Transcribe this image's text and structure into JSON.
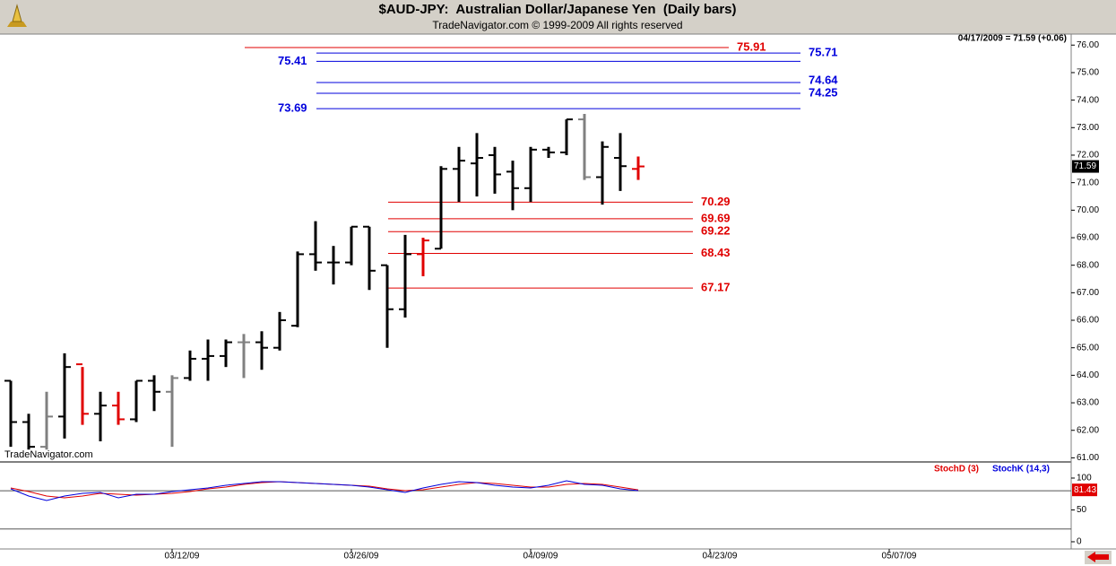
{
  "header": {
    "title": "$AUD-JPY:  Australian Dollar/Japanese Yen  (Daily bars)",
    "subtitle": "TradeNavigator.com © 1999-2009 All rights reserved",
    "status": "04/17/2009 = 71.59 (+0.06)",
    "watermark": "TradeNavigator.com"
  },
  "chart_data": [
    {
      "type": "ohlc",
      "open": [
        63.8,
        62.3,
        61.4,
        62.5,
        64.4,
        62.6,
        62.9,
        62.4,
        63.8,
        63.4,
        63.9,
        64.6,
        64.7,
        65.2,
        65.2,
        65.0,
        65.8,
        68.4,
        68.1,
        68.1,
        69.4,
        68.0,
        66.4,
        68.4,
        68.6,
        71.5,
        71.7,
        72.0,
        71.4,
        70.8,
        72.2,
        72.1,
        73.3,
        71.2,
        71.9,
        71.5
      ],
      "high": [
        63.8,
        62.6,
        63.4,
        64.8,
        64.3,
        63.4,
        63.4,
        63.8,
        64.0,
        64.0,
        64.9,
        65.3,
        65.3,
        65.5,
        65.6,
        66.3,
        68.5,
        69.6,
        68.7,
        69.4,
        69.4,
        68.0,
        69.1,
        69.0,
        71.6,
        72.3,
        72.8,
        72.3,
        71.8,
        72.3,
        72.3,
        73.3,
        73.5,
        72.5,
        72.8,
        71.95
      ],
      "low": [
        61.4,
        61.3,
        61.3,
        61.7,
        62.2,
        61.6,
        62.2,
        62.3,
        62.7,
        61.4,
        63.8,
        63.8,
        64.3,
        63.9,
        64.2,
        64.9,
        65.75,
        67.8,
        67.3,
        68.0,
        67.1,
        65.0,
        66.1,
        67.6,
        68.6,
        70.3,
        70.5,
        70.6,
        70.0,
        70.3,
        71.9,
        72.0,
        71.1,
        70.2,
        70.7,
        71.1
      ],
      "close": [
        62.3,
        61.4,
        62.5,
        64.3,
        62.6,
        62.9,
        62.4,
        63.8,
        63.4,
        63.9,
        64.6,
        64.7,
        65.2,
        65.2,
        65.0,
        66.0,
        68.4,
        68.1,
        68.1,
        69.4,
        67.8,
        66.4,
        68.4,
        68.9,
        71.5,
        71.8,
        71.9,
        71.3,
        70.8,
        72.2,
        72.1,
        73.3,
        71.2,
        72.3,
        71.6,
        71.59
      ],
      "bar_colors": [
        "#000000",
        "#000000",
        "#808080",
        "#000000",
        "#e00000",
        "#000000",
        "#e00000",
        "#000000",
        "#000000",
        "#808080",
        "#000000",
        "#000000",
        "#000000",
        "#808080",
        "#000000",
        "#000000",
        "#000000",
        "#000000",
        "#000000",
        "#000000",
        "#000000",
        "#000000",
        "#000000",
        "#e00000",
        "#000000",
        "#000000",
        "#000000",
        "#000000",
        "#000000",
        "#000000",
        "#000000",
        "#000000",
        "#808080",
        "#000000",
        "#000000",
        "#e00000"
      ],
      "level_groups": [
        {
          "color": "#e00000",
          "levels": [
            75.91
          ]
        },
        {
          "color": "#0000dd",
          "levels": [
            75.71,
            75.41,
            74.64,
            74.25,
            73.69
          ]
        },
        {
          "color": "#e00000",
          "levels": [
            70.29,
            69.69,
            69.22,
            68.43,
            67.17
          ]
        }
      ],
      "ylim": [
        60.85,
        76.4
      ],
      "yticks": [
        {
          "value": 61,
          "label": "61.00"
        },
        {
          "value": 62,
          "label": "62.00"
        },
        {
          "value": 63,
          "label": "63.00"
        },
        {
          "value": 64,
          "label": "64.00"
        },
        {
          "value": 65,
          "label": "65.00"
        },
        {
          "value": 66,
          "label": "66.00"
        },
        {
          "value": 67,
          "label": "67.00"
        },
        {
          "value": 68,
          "label": "68.00"
        },
        {
          "value": 69,
          "label": "69.00"
        },
        {
          "value": 70,
          "label": "70.00"
        },
        {
          "value": 71,
          "label": "71.00"
        },
        {
          "value": 72,
          "label": "72.00"
        },
        {
          "value": 73,
          "label": "73.00"
        },
        {
          "value": 74,
          "label": "74.00"
        },
        {
          "value": 75,
          "label": "75.00"
        },
        {
          "value": 76,
          "label": "76.00"
        }
      ]
    },
    {
      "type": "line",
      "series": [
        {
          "name": "StochD (3)",
          "color": "#e00000",
          "values": [
            84.5,
            78.9,
            71.8,
            69.0,
            71.8,
            76.1,
            74.6,
            73.2,
            74.6,
            76.1,
            78.9,
            83.1,
            85.9,
            90.1,
            93.0,
            94.4,
            93.0,
            91.5,
            90.1,
            88.7,
            87.3,
            83.1,
            80.3,
            81.7,
            85.9,
            90.1,
            93.0,
            91.5,
            88.7,
            85.9,
            85.9,
            90.1,
            91.5,
            90.1,
            85.9,
            81.43
          ]
        },
        {
          "name": "StochK (14,3)",
          "color": "#0000dd",
          "values": [
            83.1,
            71.8,
            64.8,
            71.8,
            76.1,
            77.5,
            69.0,
            74.6,
            74.6,
            78.9,
            81.7,
            84.5,
            88.7,
            91.5,
            94.4,
            94.4,
            93.0,
            91.5,
            90.1,
            88.7,
            85.9,
            81.7,
            77.5,
            84.5,
            90.1,
            94.4,
            93.0,
            88.7,
            85.9,
            84.5,
            88.7,
            95.8,
            90.1,
            88.7,
            83.1,
            80.3
          ]
        }
      ],
      "levels": [
        20,
        80
      ],
      "ylim": [
        -11.3,
        122.5
      ],
      "yticks": [
        0,
        50,
        100
      ],
      "xticks": [
        {
          "value": 9,
          "label": "03/12/09"
        },
        {
          "value": 19,
          "label": "03/26/09"
        },
        {
          "value": 29,
          "label": "04/09/09"
        },
        {
          "value": 39,
          "label": "04/23/09"
        },
        {
          "value": 49,
          "label": "05/07/09"
        }
      ]
    }
  ]
}
